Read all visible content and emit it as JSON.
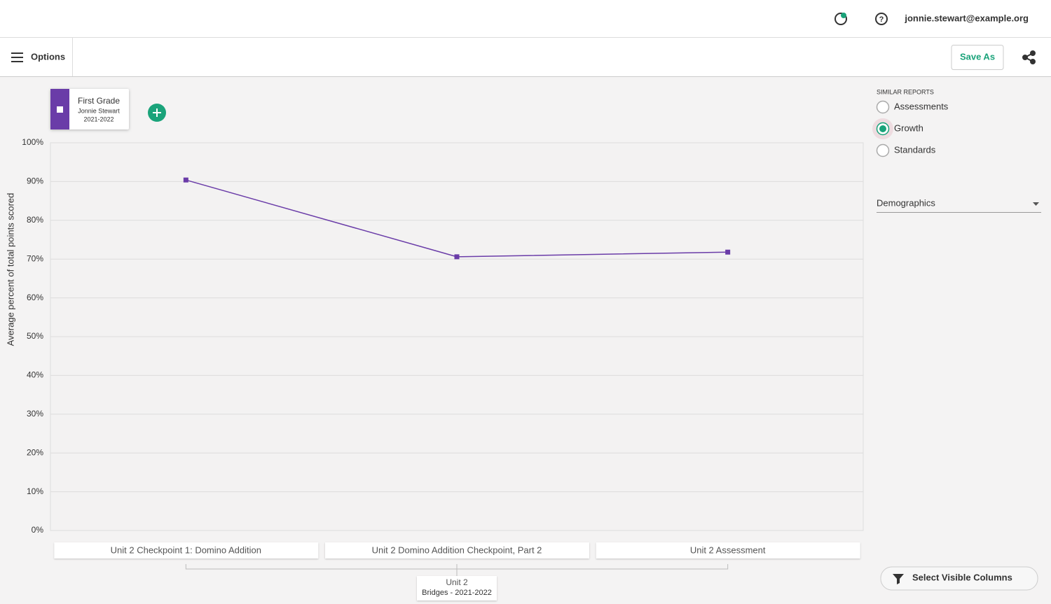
{
  "header": {
    "email": "jonnie.stewart@example.org"
  },
  "toolbar": {
    "options": "Options",
    "save_as": "Save As"
  },
  "similar_reports": {
    "title": "SIMILAR REPORTS",
    "options": [
      "Assessments",
      "Growth",
      "Standards"
    ],
    "selected": 1
  },
  "demographics": "Demographics",
  "select_columns": "Select Visible Columns",
  "chart_data": {
    "type": "line",
    "y_label": "Average percent of total points scored",
    "categories": [
      "Unit 2 Checkpoint 1: Domino Addition",
      "Unit 2 Domino Addition Checkpoint, Part 2",
      "Unit 2 Assessment"
    ],
    "category_group": [
      "Unit 2",
      "Bridges - 2021-2022"
    ],
    "series": [
      {
        "name": "First Grade",
        "color": "#6a3ca8",
        "values": [
          90.4,
          70.6,
          71.8
        ]
      }
    ],
    "legend_detail": [
      "Jonnie Stewart",
      "2021-2022"
    ],
    "ylim": [
      0,
      100
    ],
    "yticks": [
      {
        "value": 0,
        "label": "0%"
      },
      {
        "value": 10,
        "label": "10%"
      },
      {
        "value": 20,
        "label": "20%"
      },
      {
        "value": 30,
        "label": "30%"
      },
      {
        "value": 40,
        "label": "40%"
      },
      {
        "value": 50,
        "label": "50%"
      },
      {
        "value": 60,
        "label": "60%"
      },
      {
        "value": 70,
        "label": "70%"
      },
      {
        "value": 80,
        "label": "80%"
      },
      {
        "value": 90,
        "label": "90%"
      },
      {
        "value": 100,
        "label": "100%"
      }
    ],
    "grid": true
  }
}
